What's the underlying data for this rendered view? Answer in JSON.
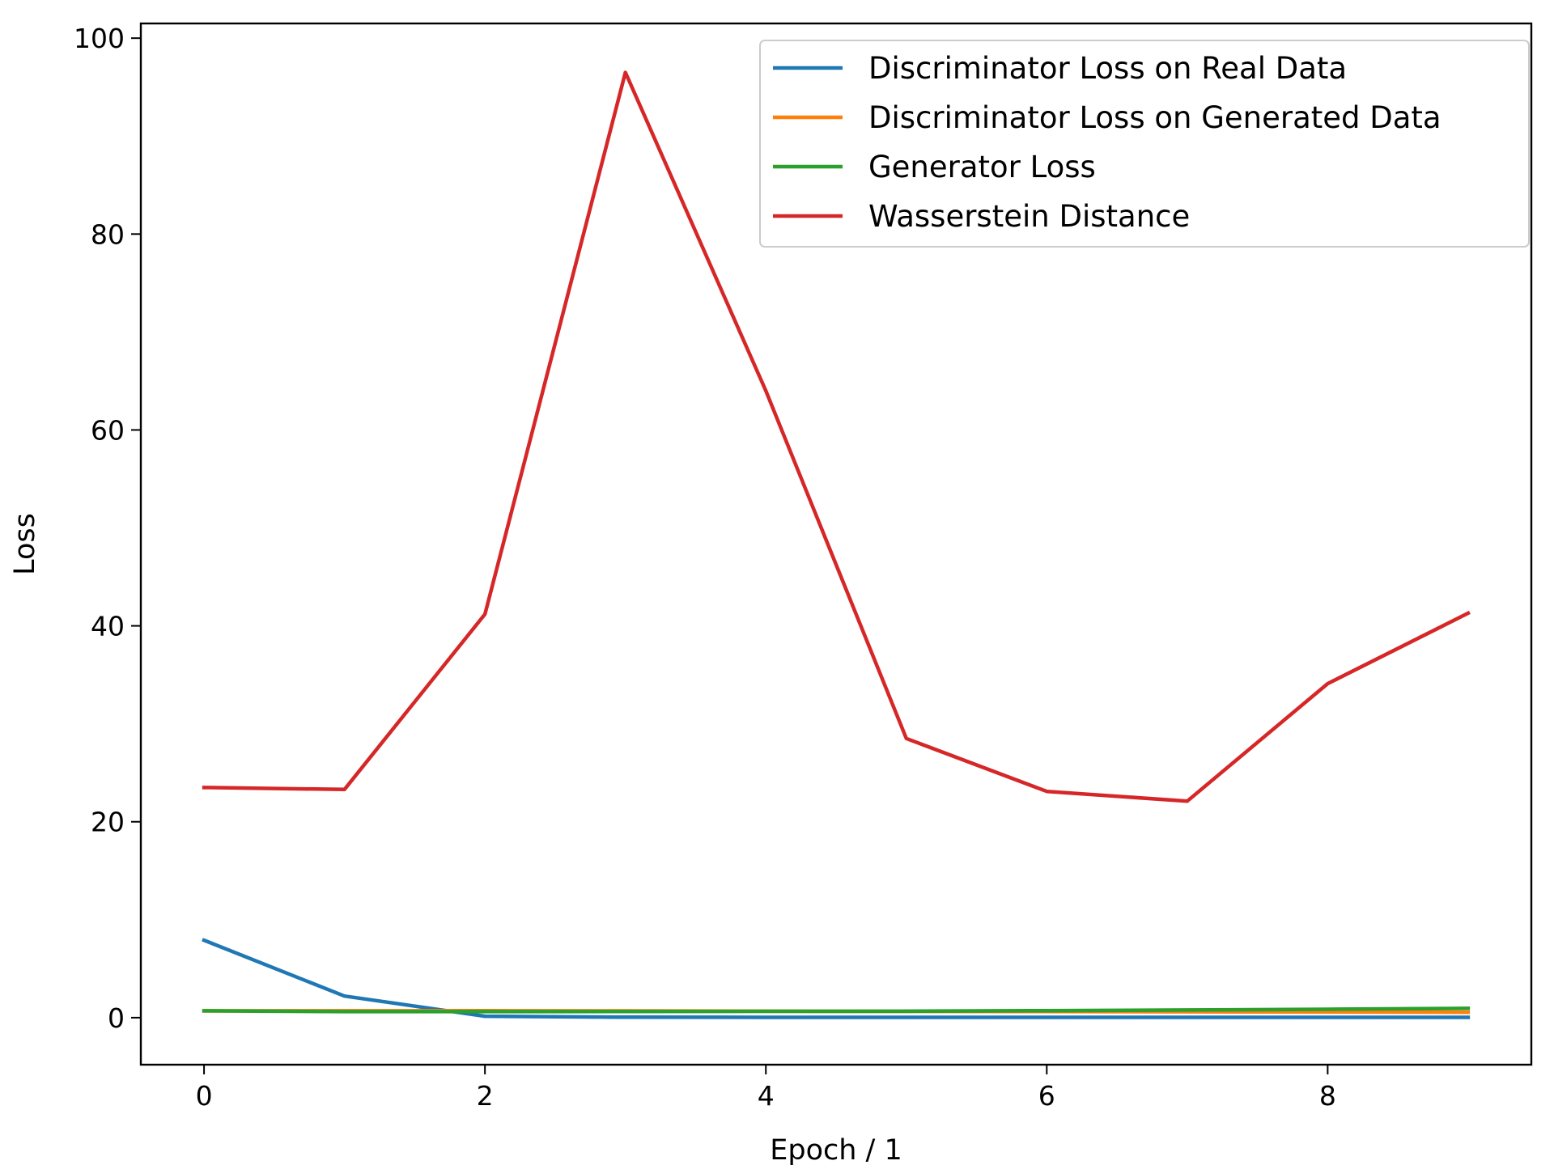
{
  "chart_data": {
    "type": "line",
    "title": "",
    "xlabel": "Epoch / 1",
    "ylabel": "Loss",
    "x": [
      0,
      1,
      2,
      3,
      4,
      5,
      6,
      7,
      8,
      9
    ],
    "xlim": [
      -0.45,
      9.45
    ],
    "ylim": [
      -4.8,
      101.5
    ],
    "xticks": [
      0,
      2,
      4,
      6,
      8
    ],
    "yticks": [
      0,
      20,
      40,
      60,
      80,
      100
    ],
    "grid": false,
    "legend_position": "top-right",
    "series": [
      {
        "name": "Discriminator Loss on Real Data",
        "color": "#1f77b4",
        "values": [
          7.9,
          2.2,
          0.15,
          0.05,
          0.03,
          0.03,
          0.03,
          0.03,
          0.03,
          0.03
        ]
      },
      {
        "name": "Discriminator Loss on Generated Data",
        "color": "#ff7f0e",
        "values": [
          0.69,
          0.7,
          0.71,
          0.69,
          0.66,
          0.64,
          0.63,
          0.6,
          0.58,
          0.55
        ]
      },
      {
        "name": "Generator Loss",
        "color": "#2ca02c",
        "values": [
          0.7,
          0.62,
          0.62,
          0.63,
          0.65,
          0.66,
          0.72,
          0.78,
          0.86,
          0.95
        ]
      },
      {
        "name": "Wasserstein Distance",
        "color": "#d62728",
        "values": [
          23.5,
          23.3,
          41.2,
          96.5,
          64.0,
          28.5,
          23.1,
          22.1,
          34.1,
          41.3
        ]
      }
    ]
  }
}
